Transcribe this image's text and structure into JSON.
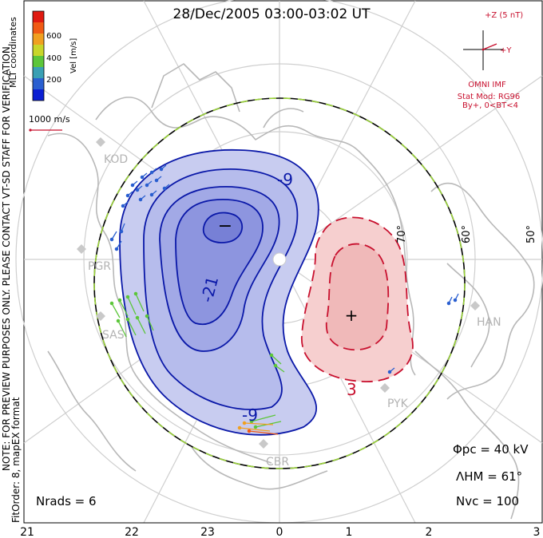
{
  "title": "28/Dec/2005 03:00-03:02 UT",
  "colorbar": {
    "label": "Vel [m/s]",
    "ticks": [
      "600",
      "400",
      "200"
    ],
    "colors": [
      "#0a1ed2",
      "#2a5fd0",
      "#3aa0b4",
      "#5cc63a",
      "#c8d62a",
      "#f0a020",
      "#f05a14",
      "#e01a10"
    ]
  },
  "coord_label": "MLT coordinates",
  "scale_label": "1000 m/s",
  "notes": {
    "preview": "NOTE: FOR PREVIEW PURPOSES ONLY. PLEASE CONTACT VT-SD STAFF FOR VERIFICATION.",
    "fit": "FitOrder: 8, mapEX format"
  },
  "imf": {
    "z_label": "+Z (5 nT)",
    "y_label": "+Y",
    "source": "OMNI IMF",
    "model": "Stat Mod: RG96",
    "condition": "By+, 0<BT<4"
  },
  "stats": {
    "phi_pc": "Φpc = 40 kV",
    "lambda_hm": "ΛHM = 61°",
    "n_vc": "Nvc = 100",
    "n_rads": "Nrads = 6"
  },
  "mlt_axis": [
    "21",
    "22",
    "23",
    "0",
    "1",
    "2",
    "3"
  ],
  "latitude_labels": [
    "70°",
    "60°",
    "50°"
  ],
  "stations": [
    "KOD",
    "PGR",
    "SAS",
    "CBR",
    "HAN",
    "PYK"
  ],
  "contours": {
    "negative_labels": [
      "-9",
      "-21",
      "-9"
    ],
    "positive_labels": [
      "3"
    ],
    "min_marker": "−",
    "max_marker": "+"
  },
  "colors": {
    "neg_contour": "#0a18a8",
    "pos_contour": "#c8102e",
    "neg_fill": "#c8ccf0",
    "pos_fill": "#f6cfcf",
    "map_gray": "#b8b8b8",
    "grid_gray": "#cfcfcf",
    "hm_boundary": "#9ad23a"
  }
}
